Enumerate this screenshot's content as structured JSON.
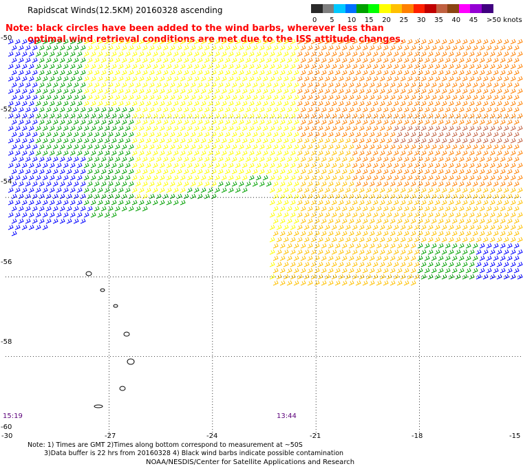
{
  "title": "Rapidscat Winds(12.5KM) 20160328 ascending",
  "note": {
    "line1": "Note: black circles have been added to the wind barbs, wherever less than",
    "line2": "optimal wind retrieval conditions are met due to the ISS attitude changes."
  },
  "legend": {
    "labels": [
      "0",
      "5",
      "10",
      "15",
      "20",
      "25",
      "30",
      "35",
      "40",
      "45",
      ">50 knots"
    ],
    "colors": [
      "#2a2a2a",
      "#7f7f7f",
      "#00c8ff",
      "#0070ff",
      "#00a000",
      "#00ff00",
      "#ffff00",
      "#ffc000",
      "#ff8000",
      "#ff2000",
      "#c00000",
      "#c06040",
      "#8b4513",
      "#ff00ff",
      "#9400d3",
      "#400080"
    ]
  },
  "axes": {
    "lat_labels": [
      "-50",
      "-52",
      "-54",
      "-56",
      "-58",
      "-60"
    ],
    "lon_labels": [
      "-30",
      "-27",
      "-24",
      "-21",
      "-18",
      "-15"
    ]
  },
  "times": {
    "left": "15:19",
    "right": "13:44"
  },
  "bottom_notes": {
    "line1": "Note: 1) Times are GMT 2)Times along bottom correspond to measurement at ~50S",
    "line2": "3)Data buffer is 22 hrs from 20160328 4) Black wind barbs indicate possible contamination"
  },
  "credit": "NOAA/NESDIS/Center for Satellite Applications and Research",
  "colors": {
    "blue": "#0000ff",
    "green": "#00a000",
    "lime": "#00ff00",
    "yellow": "#ffff00",
    "gold": "#ffc000",
    "orange": "#ff8000",
    "red": "#ff2000",
    "brown": "#c06040",
    "note_red": "#ff0000",
    "time_purple": "#5b007a"
  }
}
